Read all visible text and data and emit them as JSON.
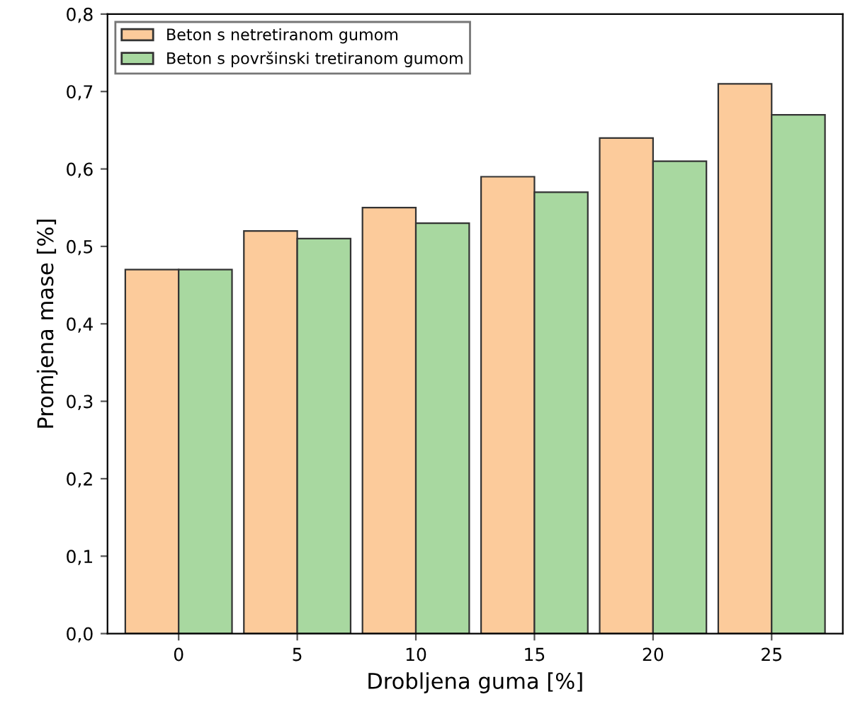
{
  "chart_data": {
    "type": "bar",
    "xlabel": "Drobljena guma [%]",
    "ylabel": "Promjena mase [%]",
    "categories": [
      "0",
      "5",
      "10",
      "15",
      "20",
      "25"
    ],
    "series": [
      {
        "name": "Beton s netretiranom gumom",
        "color": "#fccb9b",
        "values": [
          0.47,
          0.52,
          0.55,
          0.59,
          0.64,
          0.71
        ]
      },
      {
        "name": "Beton s površinski tretiranom gumom",
        "color": "#a8d8a0",
        "values": [
          0.47,
          0.51,
          0.53,
          0.57,
          0.61,
          0.67
        ]
      }
    ],
    "ylim": [
      0,
      0.8
    ],
    "yticks": [
      {
        "value": 0,
        "label": "0,0"
      },
      {
        "value": 0.1,
        "label": "0,1"
      },
      {
        "value": 0.2,
        "label": "0,2"
      },
      {
        "value": 0.3,
        "label": "0,3"
      },
      {
        "value": 0.4,
        "label": "0,4"
      },
      {
        "value": 0.5,
        "label": "0,5"
      },
      {
        "value": 0.6,
        "label": "0,6"
      },
      {
        "value": 0.7,
        "label": "0,7"
      },
      {
        "value": 0.8,
        "label": "0,8"
      }
    ],
    "legend": "top left",
    "grid": false
  }
}
